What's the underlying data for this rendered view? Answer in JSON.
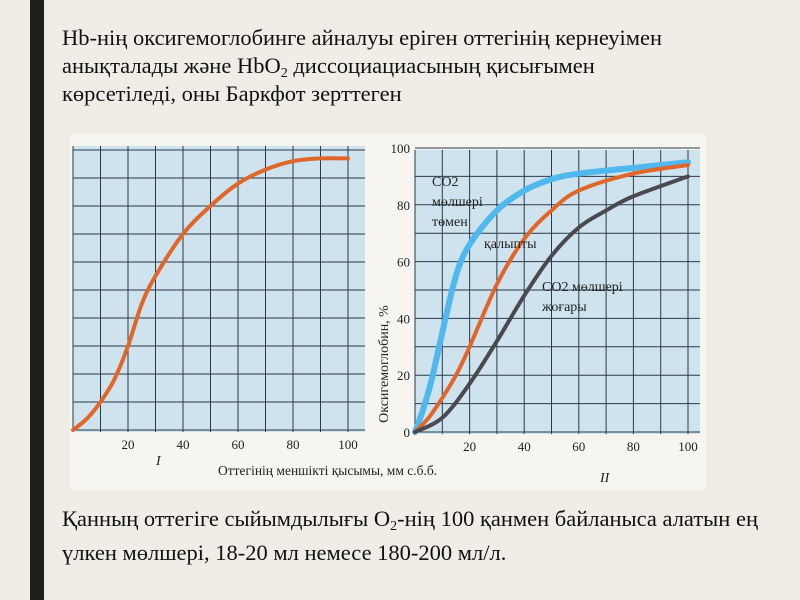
{
  "title": {
    "part1": "Hb-нің оксигемоглобинге айналуы еріген оттегінің кернеуімен анықталады және HbO",
    "sub": "2",
    "part2": " диссоциациасының қисығымен көрсетіледі, оны Баркфот зерттеген"
  },
  "bottom_text": {
    "part1": "Қанның оттегіге сыйымдылығы O",
    "sub": "2",
    "part2": "-нің 100 қанмен байланыса алатын ең үлкен мөлшері, 18-20 мл немесе 180-200 мл/л."
  },
  "colors": {
    "background": "#efede6",
    "left_bar": "#1e1e1c",
    "grid_bg": "#cfe3ee",
    "grid_line": "#2a3a4a",
    "orange": "#e0662a",
    "blue": "#4fb8ec",
    "gray": "#4a4a4e"
  },
  "chart_data": [
    {
      "type": "line",
      "panel_label": "I",
      "xlim": [
        0,
        100
      ],
      "ylim": [
        0,
        100
      ],
      "x_ticks": [
        "20",
        "40",
        "60",
        "80",
        "100"
      ],
      "grid": true,
      "series": [
        {
          "color": "#e0662a",
          "x": [
            0,
            5,
            10,
            15,
            20,
            25,
            30,
            40,
            50,
            60,
            70,
            80,
            90,
            100
          ],
          "y": [
            0,
            4,
            10,
            18,
            30,
            45,
            55,
            70,
            80,
            88,
            93,
            96,
            97,
            97
          ]
        }
      ]
    },
    {
      "type": "line",
      "panel_label": "II",
      "xlim": [
        0,
        100
      ],
      "ylim": [
        0,
        100
      ],
      "x_ticks": [
        "20",
        "40",
        "60",
        "80",
        "100"
      ],
      "y_ticks": [
        "0",
        "20",
        "40",
        "60",
        "80",
        "100"
      ],
      "ylabel": "Оксигемоглобин, %",
      "xlabel": "Оттегінің меншікті қысымы, мм с.б.б.",
      "grid": true,
      "annotations": [
        "CO2",
        "мөлшері",
        "төмен",
        "қалыпты",
        "CO2 мөлшері",
        "жоғары"
      ],
      "series": [
        {
          "color": "#4fb8ec",
          "x": [
            0,
            3,
            6,
            10,
            15,
            20,
            30,
            40,
            50,
            60,
            80,
            100
          ],
          "y": [
            0,
            8,
            18,
            35,
            55,
            66,
            78,
            85,
            89,
            91,
            93,
            95
          ]
        },
        {
          "color": "#e0662a",
          "x": [
            0,
            5,
            10,
            15,
            20,
            30,
            40,
            50,
            60,
            80,
            100
          ],
          "y": [
            0,
            5,
            12,
            20,
            30,
            52,
            68,
            78,
            85,
            91,
            94
          ]
        },
        {
          "color": "#4a4a4e",
          "x": [
            0,
            10,
            20,
            30,
            40,
            50,
            60,
            70,
            80,
            100
          ],
          "y": [
            0,
            5,
            17,
            32,
            48,
            62,
            72,
            78,
            83,
            90
          ]
        }
      ]
    }
  ]
}
